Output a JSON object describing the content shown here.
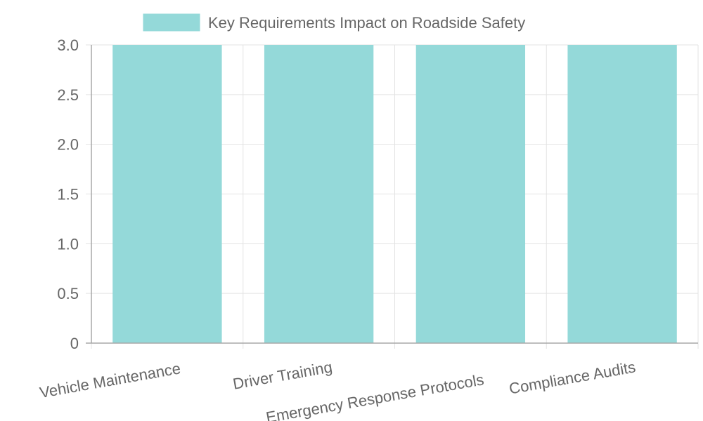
{
  "chart_data": {
    "type": "bar",
    "categories": [
      "Vehicle Maintenance",
      "Driver Training",
      "Emergency Response Protocols",
      "Compliance Audits"
    ],
    "series": [
      {
        "name": "Key Requirements Impact on Roadside Safety",
        "values": [
          3,
          3,
          3,
          3
        ],
        "color": "#94d9d9"
      }
    ],
    "title": "",
    "xlabel": "",
    "ylabel": "",
    "ylim": [
      0,
      3.0
    ],
    "y_ticks": [
      "0",
      "0.5",
      "1.0",
      "1.5",
      "2.0",
      "2.5",
      "3.0"
    ],
    "grid": true,
    "legend": "top-center"
  }
}
